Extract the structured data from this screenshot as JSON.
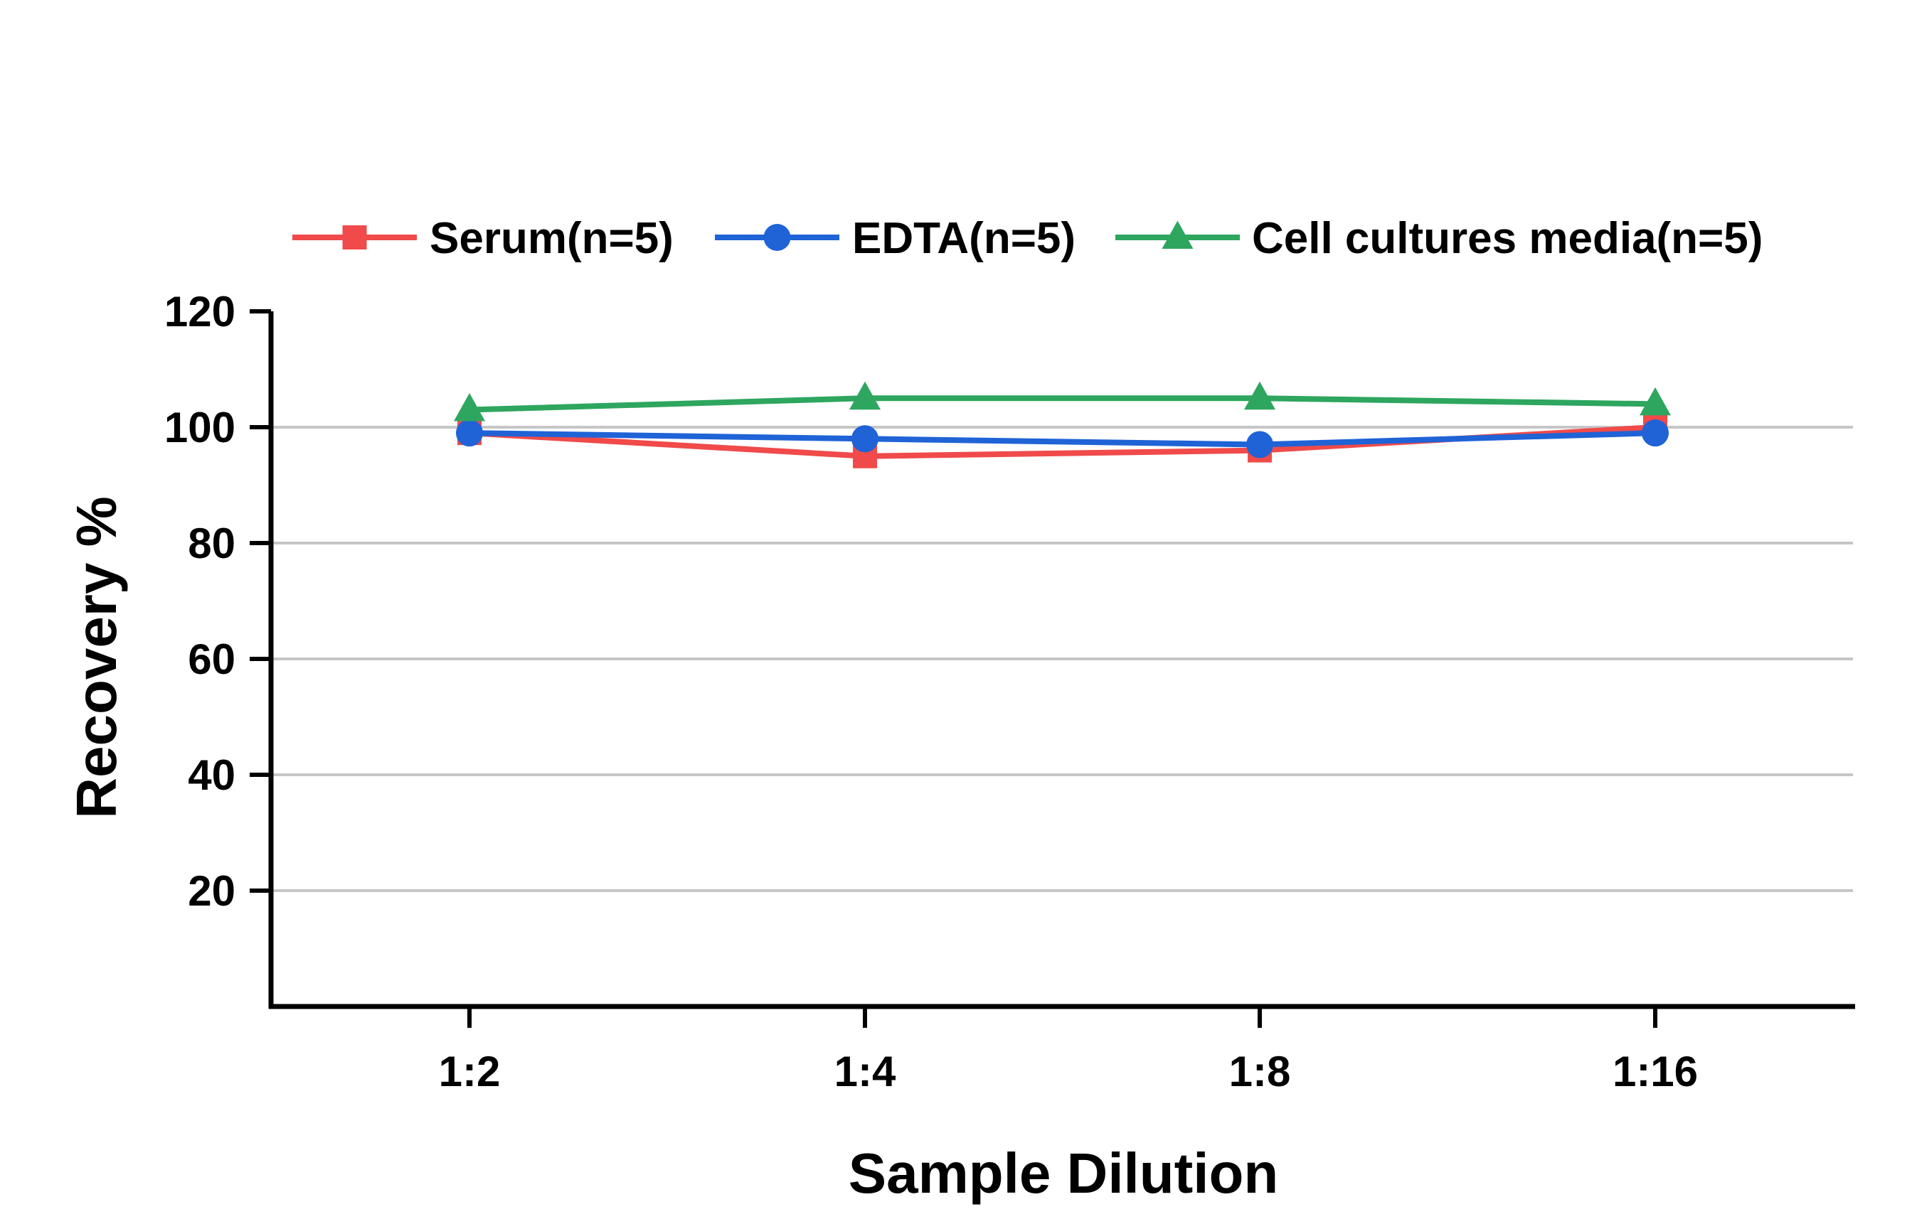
{
  "chart_data": {
    "type": "line",
    "title": "",
    "xlabel": "Sample Dilution",
    "ylabel": "Recovery %",
    "categories": [
      "1:2",
      "1:4",
      "1:8",
      "1:16"
    ],
    "ylim": [
      0,
      120
    ],
    "yticks": [
      20,
      40,
      60,
      80,
      100,
      120
    ],
    "grid": true,
    "legend_position": "top",
    "series": [
      {
        "name": "Serum(n=5)",
        "color": "#F04A4A",
        "marker": "square",
        "values": [
          99,
          95,
          96,
          100
        ]
      },
      {
        "name": "EDTA(n=5)",
        "color": "#1F63D6",
        "marker": "circle",
        "values": [
          99,
          98,
          97,
          99
        ]
      },
      {
        "name": "Cell cultures media(n=5)",
        "color": "#2EA65F",
        "marker": "triangle",
        "values": [
          103,
          105,
          105,
          104
        ]
      }
    ]
  }
}
